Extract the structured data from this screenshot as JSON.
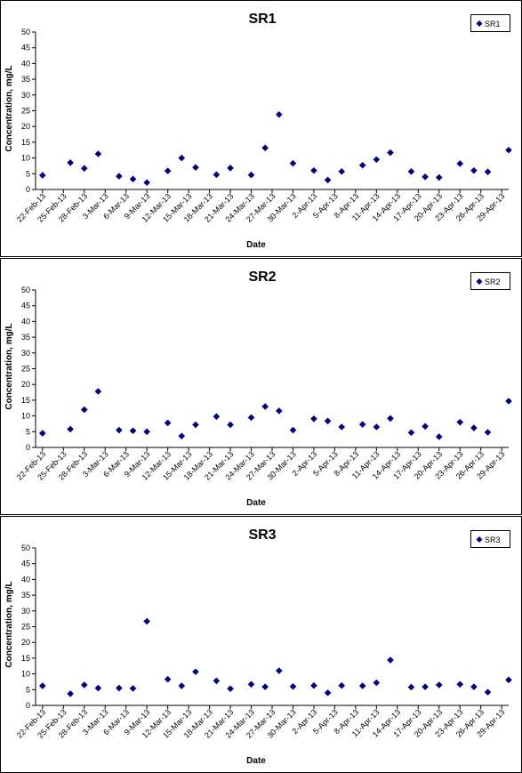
{
  "chart_data": [
    {
      "type": "scatter",
      "title": "SR1",
      "xlabel": "Date",
      "ylabel": "Concentration, mg/L",
      "ylim": [
        0,
        50
      ],
      "yticks": [
        0,
        5,
        10,
        15,
        20,
        25,
        30,
        35,
        40,
        45,
        50
      ],
      "xlim": [
        "2013-02-21",
        "2013-04-30"
      ],
      "xtick_labels": [
        "22-Feb-13",
        "25-Feb-13",
        "28-Feb-13",
        "3-Mar-13",
        "6-Mar-13",
        "9-Mar-13",
        "12-Mar-13",
        "15-Mar-13",
        "18-Mar-13",
        "21-Mar-13",
        "24-Mar-13",
        "27-Mar-13",
        "30-Mar-13",
        "2-Apr-13",
        "5-Apr-13",
        "8-Apr-13",
        "11-Apr-13",
        "14-Apr-13",
        "17-Apr-13",
        "20-Apr-13",
        "23-Apr-13",
        "26-Apr-13",
        "29-Apr-13"
      ],
      "grid": false,
      "legend_position": "top-right",
      "marker_color": "#000080",
      "series": [
        {
          "name": "SR1",
          "x": [
            "2013-02-22",
            "2013-02-26",
            "2013-02-28",
            "2013-03-02",
            "2013-03-05",
            "2013-03-07",
            "2013-03-09",
            "2013-03-12",
            "2013-03-14",
            "2013-03-16",
            "2013-03-19",
            "2013-03-21",
            "2013-03-24",
            "2013-03-26",
            "2013-03-28",
            "2013-03-30",
            "2013-04-02",
            "2013-04-04",
            "2013-04-06",
            "2013-04-09",
            "2013-04-11",
            "2013-04-13",
            "2013-04-16",
            "2013-04-18",
            "2013-04-20",
            "2013-04-23",
            "2013-04-25",
            "2013-04-27",
            "2013-04-30"
          ],
          "y": [
            4.5,
            8.5,
            6.7,
            11.3,
            4.2,
            3.3,
            2.2,
            5.9,
            10.0,
            7.0,
            4.7,
            6.8,
            4.6,
            13.2,
            23.8,
            8.3,
            6.0,
            3.0,
            5.7,
            7.7,
            9.5,
            11.7,
            5.7,
            4.0,
            3.8,
            8.2,
            6.0,
            5.6,
            12.5
          ]
        }
      ]
    },
    {
      "type": "scatter",
      "title": "SR2",
      "xlabel": "Date",
      "ylabel": "Concentration, mg/L",
      "ylim": [
        0,
        50
      ],
      "yticks": [
        0,
        5,
        10,
        15,
        20,
        25,
        30,
        35,
        40,
        45,
        50
      ],
      "xlim": [
        "2013-02-21",
        "2013-04-30"
      ],
      "xtick_labels": [
        "22-Feb-13",
        "25-Feb-13",
        "28-Feb-13",
        "3-Mar-13",
        "6-Mar-13",
        "9-Mar-13",
        "12-Mar-13",
        "15-Mar-13",
        "18-Mar-13",
        "21-Mar-13",
        "24-Mar-13",
        "27-Mar-13",
        "30-Mar-13",
        "2-Apr-13",
        "5-Apr-13",
        "8-Apr-13",
        "11-Apr-13",
        "14-Apr-13",
        "17-Apr-13",
        "20-Apr-13",
        "23-Apr-13",
        "26-Apr-13",
        "29-Apr-13"
      ],
      "grid": false,
      "legend_position": "top-right",
      "marker_color": "#000080",
      "series": [
        {
          "name": "SR2",
          "x": [
            "2013-02-22",
            "2013-02-26",
            "2013-02-28",
            "2013-03-02",
            "2013-03-05",
            "2013-03-07",
            "2013-03-09",
            "2013-03-12",
            "2013-03-14",
            "2013-03-16",
            "2013-03-19",
            "2013-03-21",
            "2013-03-24",
            "2013-03-26",
            "2013-03-28",
            "2013-03-30",
            "2013-04-02",
            "2013-04-04",
            "2013-04-06",
            "2013-04-09",
            "2013-04-11",
            "2013-04-13",
            "2013-04-16",
            "2013-04-18",
            "2013-04-20",
            "2013-04-23",
            "2013-04-25",
            "2013-04-27",
            "2013-04-30"
          ],
          "y": [
            4.5,
            5.8,
            12.0,
            17.8,
            5.5,
            5.3,
            5.0,
            7.8,
            3.6,
            7.2,
            9.8,
            7.2,
            9.5,
            13.0,
            11.6,
            5.5,
            9.1,
            8.4,
            6.5,
            7.3,
            6.5,
            9.2,
            4.7,
            6.7,
            3.4,
            8.0,
            6.2,
            4.8,
            14.7
          ]
        }
      ]
    },
    {
      "type": "scatter",
      "title": "SR3",
      "xlabel": "Date",
      "ylabel": "Concentration, mg/L",
      "ylim": [
        0,
        50
      ],
      "yticks": [
        0,
        5,
        10,
        15,
        20,
        25,
        30,
        35,
        40,
        45,
        50
      ],
      "xlim": [
        "2013-02-21",
        "2013-04-30"
      ],
      "xtick_labels": [
        "22-Feb-13",
        "25-Feb-13",
        "28-Feb-13",
        "3-Mar-13",
        "6-Mar-13",
        "9-Mar-13",
        "12-Mar-13",
        "15-Mar-13",
        "18-Mar-13",
        "21-Mar-13",
        "24-Mar-13",
        "27-Mar-13",
        "30-Mar-13",
        "2-Apr-13",
        "5-Apr-13",
        "8-Apr-13",
        "11-Apr-13",
        "14-Apr-13",
        "17-Apr-13",
        "20-Apr-13",
        "23-Apr-13",
        "26-Apr-13",
        "29-Apr-13"
      ],
      "grid": false,
      "legend_position": "top-right",
      "marker_color": "#000080",
      "series": [
        {
          "name": "SR3",
          "x": [
            "2013-02-22",
            "2013-02-26",
            "2013-02-28",
            "2013-03-02",
            "2013-03-05",
            "2013-03-07",
            "2013-03-09",
            "2013-03-12",
            "2013-03-14",
            "2013-03-16",
            "2013-03-19",
            "2013-03-21",
            "2013-03-24",
            "2013-03-26",
            "2013-03-28",
            "2013-03-30",
            "2013-04-02",
            "2013-04-04",
            "2013-04-06",
            "2013-04-09",
            "2013-04-11",
            "2013-04-13",
            "2013-04-16",
            "2013-04-18",
            "2013-04-20",
            "2013-04-23",
            "2013-04-25",
            "2013-04-27",
            "2013-04-30"
          ],
          "y": [
            6.2,
            3.7,
            6.5,
            5.5,
            5.5,
            5.4,
            26.7,
            8.3,
            6.2,
            10.7,
            7.8,
            5.3,
            6.7,
            5.9,
            11.0,
            6.0,
            6.3,
            4.0,
            6.3,
            6.2,
            7.2,
            14.4,
            5.8,
            5.9,
            6.5,
            6.7,
            5.9,
            4.2,
            8.1
          ]
        }
      ]
    }
  ]
}
